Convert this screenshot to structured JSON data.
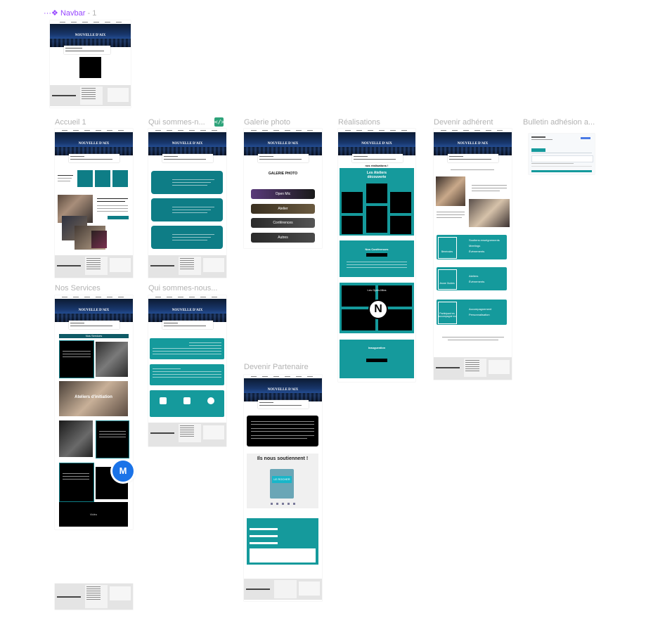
{
  "canvas": {
    "top_frame": {
      "icon": "component-icon",
      "name": "Navbar",
      "suffix": "- 1"
    },
    "component_color": "#9747ff",
    "frame_labels": {
      "accueil": "Accueil 1",
      "qui1": "Qui sommes-n...",
      "galerie": "Galerie photo",
      "realisations": "Réalisations",
      "adherent": "Devenir adhérent",
      "bulletin": "Bulletin adhésion a...",
      "services": "Nos Services",
      "qui2": "Qui sommes-nous...",
      "partenaire": "Devenir Partenaire"
    },
    "dev_mode_badge": "</>",
    "collaborator_initial": "M",
    "collaborator_color": "#1a73e8",
    "accent_teal": "#0e7d86"
  },
  "site": {
    "logo_text": "NOUVELLE D'AIX",
    "galerie_title": "GALERIE PHOTO",
    "galerie_items": [
      "Open Mic",
      "Atelier",
      "Conférences",
      "Autres"
    ],
    "realisations": {
      "title": "nos réalisations !",
      "ateliers": "Les Ateliers découverte",
      "conferences": "Nos Conférences",
      "openmic": "Les Open-Mics",
      "inauguration": "Inauguration"
    },
    "adherent": {
      "cards": [
        {
          "label": "Bénévoles",
          "items": [
            "Soutiens enseignements",
            "Meetings",
            "Évènements"
          ]
        },
        {
          "label": "Jeune Guides",
          "items": [
            "Ateliers",
            "Évènements"
          ]
        },
        {
          "label": "Participant·es accompagné·es",
          "items": [
            "Accompagnement",
            "Personnalisation"
          ]
        }
      ]
    },
    "partenaire": {
      "title": "Ils nous soutiennent !",
      "partner": "LE ROCHER"
    },
    "services": {
      "title": "Nos Services",
      "atelier": "Ateliers d'initiation",
      "video": "Vidéo"
    }
  }
}
